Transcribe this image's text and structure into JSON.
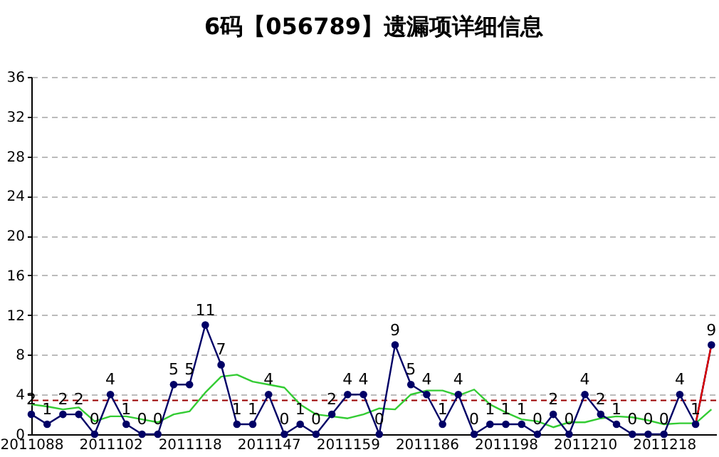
{
  "chart_data": {
    "type": "line",
    "title": "6码【056789】遗漏项详细信息",
    "categories": [
      "2011088",
      null,
      null,
      null,
      null,
      "2011102",
      null,
      null,
      null,
      null,
      "2011118",
      null,
      null,
      null,
      null,
      "2011147",
      null,
      null,
      null,
      null,
      "2011159",
      null,
      null,
      null,
      null,
      "2011186",
      null,
      null,
      null,
      null,
      "2011198",
      null,
      null,
      null,
      null,
      "2011210",
      null,
      null,
      null,
      null,
      "2011218",
      null,
      null,
      null
    ],
    "series": [
      {
        "color": "#33cc33",
        "marker": "none",
        "values": [
          3.0,
          2.8,
          2.5,
          2.7,
          1.3,
          1.8,
          1.8,
          1.5,
          1.2,
          2.0,
          2.3,
          4.2,
          5.8,
          6.0,
          5.3,
          5.0,
          4.7,
          3.0,
          2.0,
          1.8,
          1.6,
          2.0,
          2.6,
          2.5,
          4.0,
          4.4,
          4.4,
          3.9,
          4.5,
          3.0,
          2.2,
          1.5,
          1.3,
          0.7,
          1.2,
          1.2,
          1.6,
          1.8,
          1.7,
          1.4,
          1.0,
          1.1,
          1.1,
          2.5
        ]
      },
      {
        "color": "#000066",
        "marker": "circle",
        "data_labels": true,
        "values": [
          2,
          1,
          2,
          2,
          0,
          4,
          1,
          0,
          0,
          5,
          5,
          11,
          7,
          1,
          1,
          4,
          0,
          1,
          0,
          2,
          4,
          4,
          0,
          9,
          5,
          4,
          1,
          4,
          0,
          1,
          1,
          1,
          0,
          2,
          0,
          4,
          2,
          1,
          0,
          0,
          0,
          4,
          1,
          9
        ]
      },
      {
        "color": "#dd0000",
        "marker": "none",
        "values": [
          null,
          null,
          null,
          null,
          null,
          null,
          null,
          null,
          null,
          null,
          null,
          null,
          null,
          null,
          null,
          null,
          null,
          null,
          null,
          null,
          null,
          null,
          null,
          null,
          null,
          null,
          null,
          null,
          null,
          null,
          null,
          null,
          null,
          null,
          null,
          null,
          null,
          null,
          null,
          null,
          null,
          null,
          1,
          9
        ]
      }
    ],
    "ylim": [
      0,
      36
    ],
    "yticks": [
      0,
      4,
      8,
      12,
      16,
      20,
      24,
      28,
      32,
      36
    ],
    "grid": "y",
    "ref_lines": [
      {
        "axis": "y",
        "value": 3.4,
        "color": "#990000",
        "line_style": "dashed"
      }
    ]
  }
}
